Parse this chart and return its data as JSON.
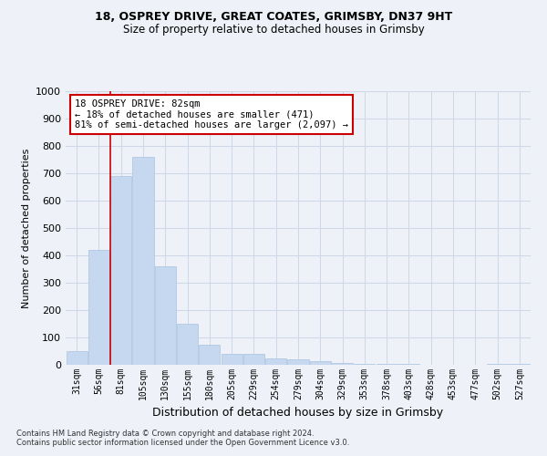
{
  "title_line1": "18, OSPREY DRIVE, GREAT COATES, GRIMSBY, DN37 9HT",
  "title_line2": "Size of property relative to detached houses in Grimsby",
  "xlabel": "Distribution of detached houses by size in Grimsby",
  "ylabel": "Number of detached properties",
  "categories": [
    "31sqm",
    "56sqm",
    "81sqm",
    "105sqm",
    "130sqm",
    "155sqm",
    "180sqm",
    "205sqm",
    "229sqm",
    "254sqm",
    "279sqm",
    "304sqm",
    "329sqm",
    "353sqm",
    "378sqm",
    "403sqm",
    "428sqm",
    "453sqm",
    "477sqm",
    "502sqm",
    "527sqm"
  ],
  "values": [
    50,
    420,
    690,
    760,
    360,
    150,
    75,
    40,
    40,
    25,
    20,
    12,
    8,
    5,
    3,
    2,
    1,
    1,
    0,
    5,
    5
  ],
  "bar_color": "#c5d8f0",
  "bar_edge_color": "#aac4e0",
  "grid_color": "#d0d8e8",
  "annotation_line1": "18 OSPREY DRIVE: 82sqm",
  "annotation_line2": "← 18% of detached houses are smaller (471)",
  "annotation_line3": "81% of semi-detached houses are larger (2,097) →",
  "vline_x": 1.5,
  "vline_color": "#cc0000",
  "footer_line1": "Contains HM Land Registry data © Crown copyright and database right 2024.",
  "footer_line2": "Contains public sector information licensed under the Open Government Licence v3.0.",
  "ylim": [
    0,
    1000
  ],
  "background_color": "#eef2f8"
}
